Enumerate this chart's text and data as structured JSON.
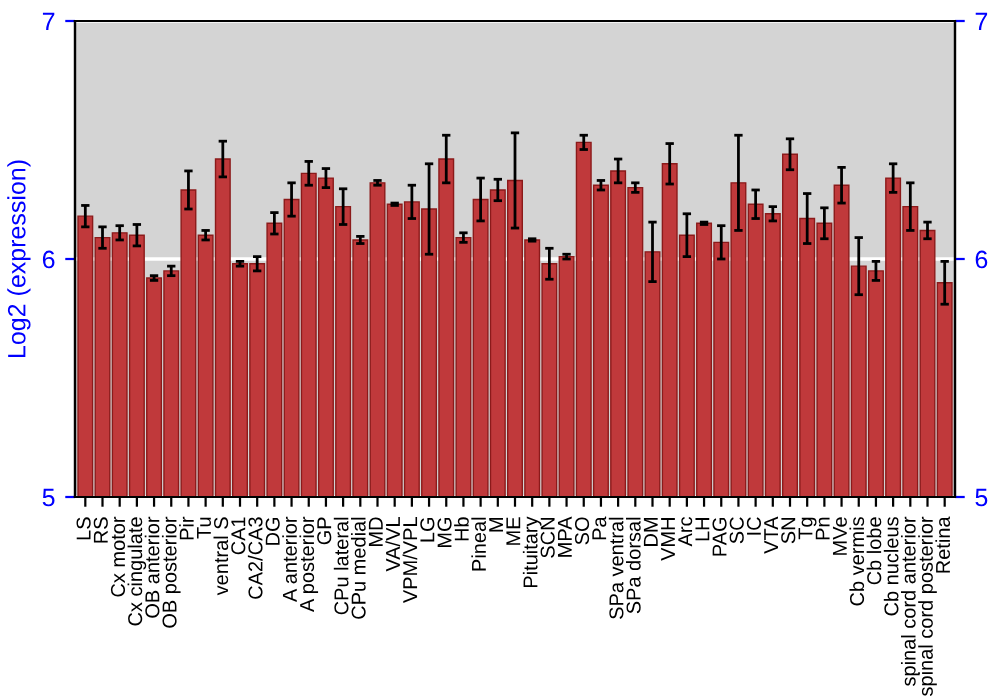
{
  "chart_data": {
    "type": "bar",
    "ylabel": "Log2 (expression)",
    "categories": [
      "LS",
      "RS",
      "Cx motor",
      "Cx cingulate",
      "OB anterior",
      "OB posterior",
      "Pir",
      "Tu",
      "ventral S",
      "CA1",
      "CA2/CA3",
      "DG",
      "A anterior",
      "A posterior",
      "GP",
      "CPu lateral",
      "CPu medial",
      "MD",
      "VA/VL",
      "VPM/VPL",
      "LG",
      "MG",
      "Hb",
      "Pineal",
      "M",
      "ME",
      "Pituitary",
      "SCN",
      "MPA",
      "SO",
      "Pa",
      "SPa ventral",
      "SPa dorsal",
      "DM",
      "VMH",
      "Arc",
      "LH",
      "PAG",
      "SC",
      "IC",
      "VTA",
      "SN",
      "Tg",
      "Pn",
      "MVe",
      "Cb vermis",
      "Cb lobe",
      "Cb nucleus",
      "spinal cord anterior",
      "spinal cord posterior",
      "Retina"
    ],
    "series": [
      {
        "color": "#c0393b",
        "values": [
          6.18,
          6.09,
          6.11,
          6.1,
          5.92,
          5.95,
          6.29,
          6.1,
          6.42,
          5.98,
          5.98,
          6.15,
          6.25,
          6.36,
          6.34,
          6.22,
          6.08,
          6.32,
          6.23,
          6.24,
          6.21,
          6.42,
          6.09,
          6.25,
          6.29,
          6.33,
          6.08,
          5.98,
          6.01,
          6.49,
          6.31,
          6.37,
          6.3,
          6.03,
          6.4,
          6.1,
          6.15,
          6.07,
          6.32,
          6.23,
          6.19,
          6.44,
          6.17,
          6.15,
          6.31,
          5.97,
          5.95,
          6.34,
          6.22,
          6.12,
          5.9
        ],
        "errors": [
          0.045,
          0.045,
          0.03,
          0.045,
          0.01,
          0.02,
          0.08,
          0.02,
          0.075,
          0.01,
          0.03,
          0.045,
          0.07,
          0.05,
          0.04,
          0.075,
          0.015,
          0.01,
          0.005,
          0.07,
          0.19,
          0.1,
          0.02,
          0.09,
          0.045,
          0.2,
          0.005,
          0.065,
          0.01,
          0.03,
          0.02,
          0.05,
          0.02,
          0.125,
          0.085,
          0.09,
          0.005,
          0.07,
          0.2,
          0.06,
          0.03,
          0.065,
          0.105,
          0.065,
          0.075,
          0.12,
          0.04,
          0.06,
          0.1,
          0.035,
          0.09
        ]
      }
    ],
    "ylim": [
      5,
      7
    ],
    "yticks": [
      5,
      6,
      7
    ],
    "y2lim": [
      5,
      7
    ],
    "y2ticks": [
      5,
      6,
      7
    ],
    "grid": "y",
    "legend": false
  }
}
